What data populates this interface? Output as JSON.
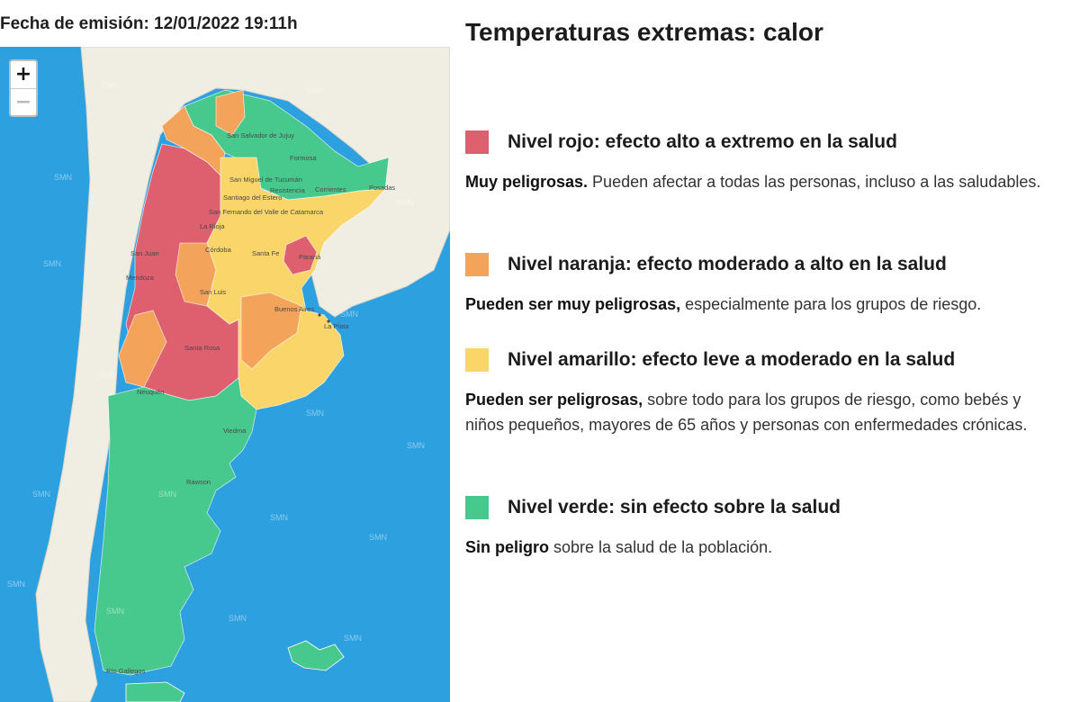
{
  "header": {
    "issue_date": "Fecha de emisión: 12/01/2022 19:11h"
  },
  "map": {
    "zoom_in_label": "+",
    "zoom_out_label": "−",
    "watermark": "SMN",
    "colors": {
      "sea": "#2da0e0",
      "land": "#f0ede3",
      "rojo": "#de5f6e",
      "naranja": "#f3a35a",
      "amarillo": "#fad66a",
      "verde": "#47c98d"
    },
    "places": [
      "San Salvador de Jujuy",
      "Formosa",
      "San Miguel de Tucumán",
      "Resistencia",
      "Corrientes",
      "Posadas",
      "Santiago del Estero",
      "San Fernando del Valle de Catamarca",
      "La Rioja",
      "Córdoba",
      "Santa Fe",
      "Paraná",
      "San Juan",
      "Mendoza",
      "San Luis",
      "Buenos Aires",
      "La Plata",
      "Santa Rosa",
      "Neuquén",
      "Viedma",
      "Rawson",
      "Río Gallegos"
    ]
  },
  "legend": {
    "title": "Temperaturas extremas: calor",
    "levels": [
      {
        "name": "Nivel rojo: efecto alto a extremo en la salud",
        "color": "#de5f6e",
        "desc_bold": "Muy peligrosas.",
        "desc_rest": " Pueden afectar a todas las personas, incluso a las saludables."
      },
      {
        "name": "Nivel naranja: efecto moderado a alto en la salud",
        "color": "#f3a35a",
        "desc_bold": "Pueden ser muy peligrosas,",
        "desc_rest": " especialmente para los grupos de riesgo."
      },
      {
        "name": "Nivel amarillo: efecto leve a moderado en la salud",
        "color": "#fad66a",
        "desc_bold": "Pueden ser peligrosas,",
        "desc_rest": " sobre todo para los grupos de riesgo, como bebés y niños pequeños, mayores de 65 años y personas con enfermedades crónicas."
      },
      {
        "name": "Nivel verde: sin efecto sobre la salud",
        "color": "#47c98d",
        "desc_bold": "Sin peligro",
        "desc_rest": " sobre la salud de la población."
      }
    ]
  }
}
